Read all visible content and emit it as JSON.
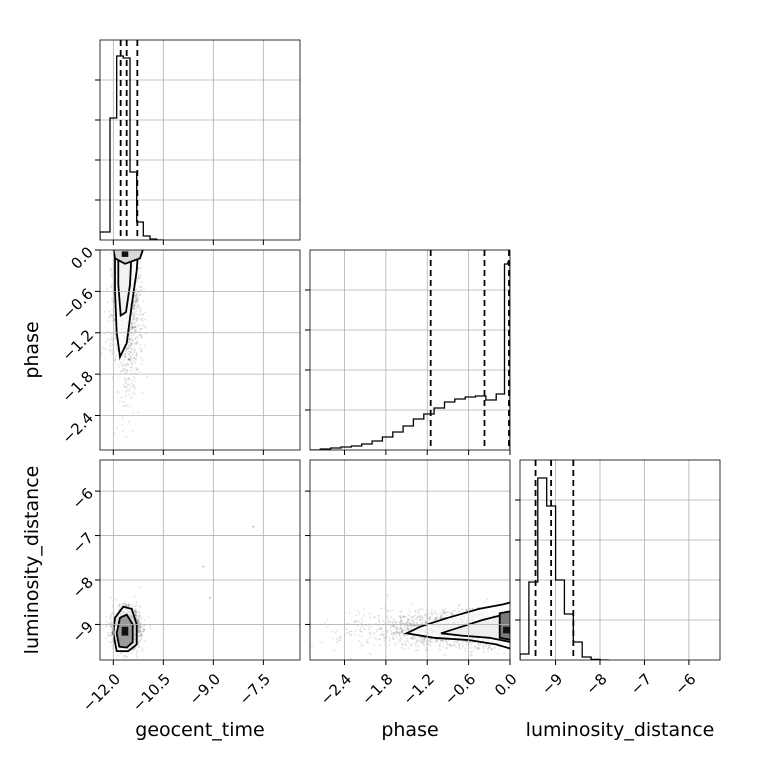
{
  "chart_data": {
    "type": "corner",
    "title": "",
    "parameters": [
      "geocent_time",
      "phase",
      "luminosity_distance"
    ],
    "grid": true,
    "ranges": {
      "geocent_time": [
        -12.4,
        -6.4
      ],
      "phase": [
        -2.9,
        0.0
      ],
      "luminosity_distance": [
        -9.8,
        -5.3
      ]
    },
    "ticks": {
      "geocent_time": [
        -12.0,
        -10.5,
        -9.0,
        -7.5
      ],
      "phase": [
        -2.4,
        -1.8,
        -1.2,
        -0.6,
        0.0
      ],
      "luminosity_distance": [
        -9,
        -8,
        -7,
        -6
      ]
    },
    "tick_labels": {
      "geocent_time": [
        "−12.0",
        "−10.5",
        "−9.0",
        "−7.5"
      ],
      "phase": [
        "−2.4",
        "−1.8",
        "−1.2",
        "−0.6",
        "0.0"
      ],
      "luminosity_distance": [
        "−9",
        "−8",
        "−7",
        "−6"
      ]
    },
    "quantiles": {
      "geocent_time": [
        -11.78,
        -11.6,
        -11.28
      ],
      "phase": [
        -1.15,
        -0.37,
        0.0
      ],
      "luminosity_distance": [
        -9.45,
        -9.1,
        -8.6
      ]
    },
    "histograms": {
      "geocent_time": {
        "edges": [
          -12.4,
          -12.1,
          -11.9,
          -11.7,
          -11.5,
          -11.3,
          -11.1,
          -10.9,
          -10.7,
          -10.5
        ],
        "counts": [
          0.04,
          0.61,
          0.92,
          0.91,
          0.34,
          0.09,
          0.02,
          0.005,
          0
        ]
      },
      "phase": {
        "edges": [
          -2.9,
          -2.75,
          -2.6,
          -2.45,
          -2.3,
          -2.15,
          -2.0,
          -1.85,
          -1.7,
          -1.55,
          -1.4,
          -1.25,
          -1.1,
          -0.95,
          -0.8,
          -0.65,
          -0.5,
          -0.35,
          -0.2,
          -0.08,
          -0.03,
          0.0
        ],
        "counts": [
          0.0,
          0.005,
          0.01,
          0.015,
          0.02,
          0.03,
          0.045,
          0.065,
          0.09,
          0.12,
          0.155,
          0.18,
          0.21,
          0.24,
          0.255,
          0.265,
          0.27,
          0.25,
          0.28,
          0.93,
          0.94
        ]
      },
      "luminosity_distance": {
        "edges": [
          -9.8,
          -9.6,
          -9.4,
          -9.2,
          -9.0,
          -8.8,
          -8.6,
          -8.4,
          -8.2,
          -8.0,
          -7.8
        ],
        "counts": [
          0.03,
          0.39,
          0.91,
          0.77,
          0.4,
          0.23,
          0.09,
          0.015,
          0.003,
          0
        ]
      }
    },
    "point_clouds": {
      "geocent_time_vs_phase": {
        "x_center": -11.6,
        "y_center": -0.25,
        "ranges": {
          "x": [
            -12.3,
            -10.3
          ],
          "y": [
            -2.75,
            0.0
          ]
        }
      },
      "geocent_time_vs_luminosity_distance": {
        "x_center": -11.6,
        "y_center": -9.1,
        "ranges": {
          "x": [
            -12.3,
            -10.0
          ],
          "y": [
            -9.7,
            -7.9
          ]
        },
        "outliers": [
          [
            -9.3,
            -7.7
          ],
          [
            -9.1,
            -8.4
          ],
          [
            -7.8,
            -6.8
          ]
        ]
      },
      "phase_vs_luminosity_distance": {
        "x_center": -0.1,
        "y_center": -9.1,
        "ranges": {
          "x": [
            -2.9,
            0.0
          ],
          "y": [
            -9.7,
            -8.0
          ]
        }
      }
    }
  }
}
